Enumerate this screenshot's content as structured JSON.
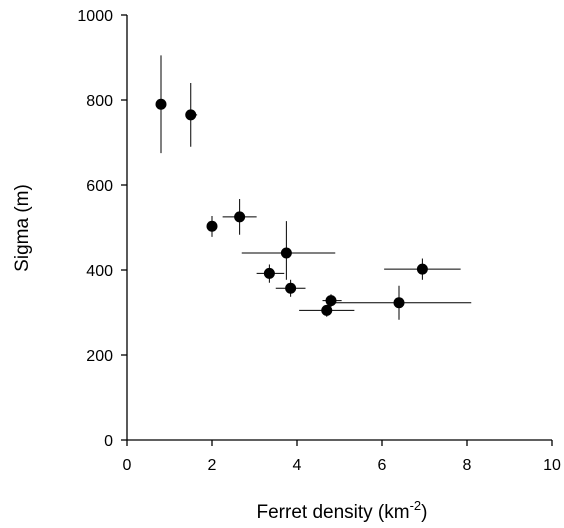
{
  "chart_data": {
    "type": "scatter",
    "title": "",
    "xlabel": "Ferret density (km",
    "xlabel_sup": "-2",
    "xlabel_tail": ")",
    "ylabel": "Sigma (m)",
    "xlim": [
      0,
      10
    ],
    "ylim": [
      0,
      1000
    ],
    "xticks": [
      0,
      2,
      4,
      6,
      8,
      10
    ],
    "yticks": [
      0,
      200,
      400,
      600,
      800,
      1000
    ],
    "grid": false,
    "legend": "none",
    "marker_color": "#000000",
    "points": [
      {
        "x": 0.8,
        "y": 790,
        "xerr": [
          0.8,
          0.8
        ],
        "yerr": [
          675,
          905
        ]
      },
      {
        "x": 1.5,
        "y": 765,
        "xerr": [
          1.4,
          1.65
        ],
        "yerr": [
          690,
          840
        ]
      },
      {
        "x": 2.0,
        "y": 503,
        "xerr": [
          1.9,
          2.1
        ],
        "yerr": [
          478,
          527
        ]
      },
      {
        "x": 2.65,
        "y": 525,
        "xerr": [
          2.25,
          3.05
        ],
        "yerr": [
          483,
          567
        ]
      },
      {
        "x": 3.35,
        "y": 392,
        "xerr": [
          3.05,
          3.7
        ],
        "yerr": [
          370,
          413
        ]
      },
      {
        "x": 3.75,
        "y": 440,
        "xerr": [
          2.7,
          4.9
        ],
        "yerr": [
          377,
          515
        ]
      },
      {
        "x": 3.85,
        "y": 357,
        "xerr": [
          3.5,
          4.2
        ],
        "yerr": [
          337,
          377
        ]
      },
      {
        "x": 4.7,
        "y": 305,
        "xerr": [
          4.05,
          5.35
        ],
        "yerr": [
          290,
          318
        ]
      },
      {
        "x": 4.8,
        "y": 328,
        "xerr": [
          4.6,
          5.05
        ],
        "yerr": [
          313,
          343
        ]
      },
      {
        "x": 6.4,
        "y": 323,
        "xerr": [
          4.75,
          8.1
        ],
        "yerr": [
          283,
          363
        ]
      },
      {
        "x": 6.95,
        "y": 402,
        "xerr": [
          6.05,
          7.85
        ],
        "yerr": [
          377,
          427
        ]
      }
    ]
  }
}
